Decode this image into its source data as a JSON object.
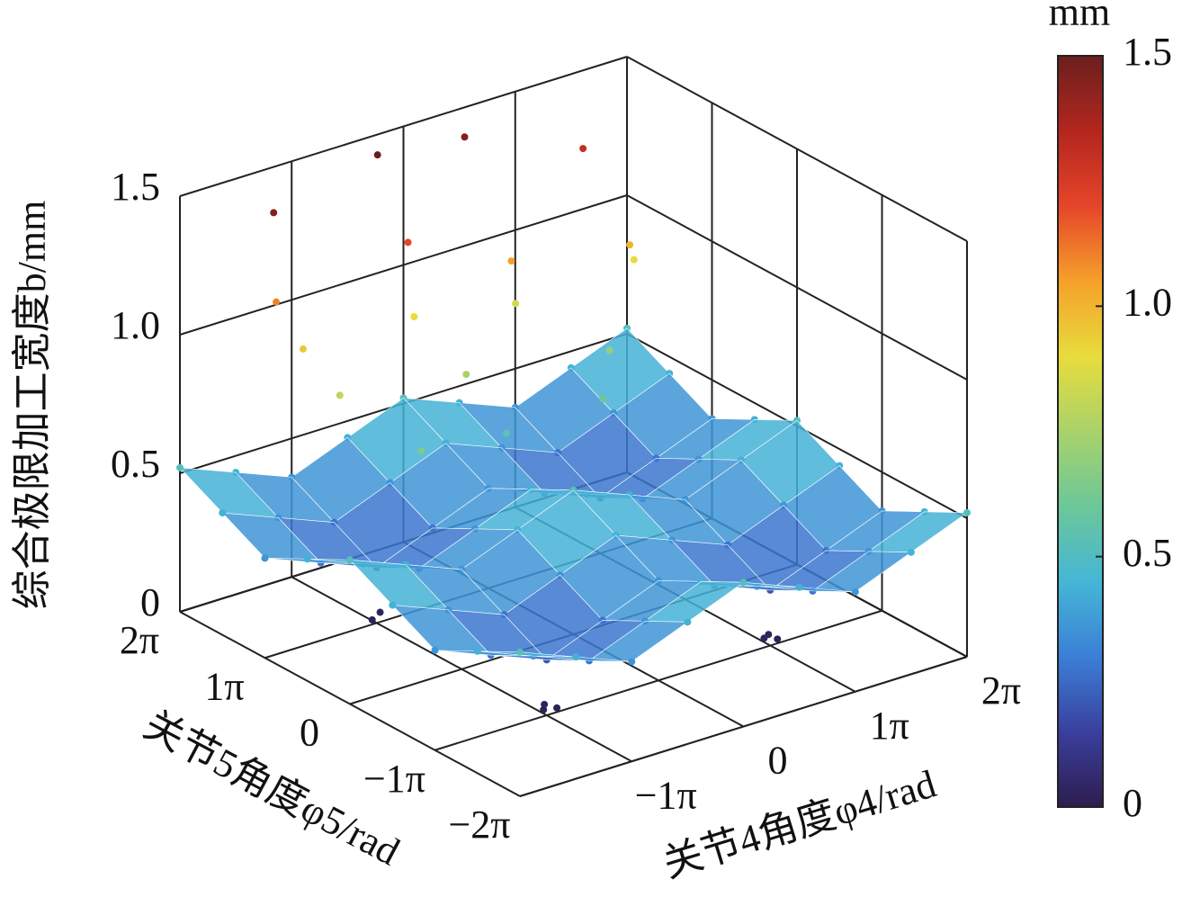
{
  "chart_data": {
    "type": "scatter3d",
    "zlabel": "综合极限加工宽度b/mm",
    "xlabel": "关节4角度φ4/rad",
    "ylabel": "关节5角度φ5/rad",
    "colorbar_title": "mm",
    "xlim": [
      -6.283,
      6.283
    ],
    "ylim": [
      -6.283,
      6.283
    ],
    "zlim": [
      0,
      1.5
    ],
    "xticks": [
      {
        "value": -3.142,
        "label": "−1π"
      },
      0,
      {
        "value": 3.142,
        "label": "1π"
      },
      {
        "value": 6.283,
        "label": "2π"
      }
    ],
    "yticks": [
      {
        "value": -6.283,
        "label": "−2π"
      },
      {
        "value": -3.142,
        "label": "−1π"
      },
      0,
      {
        "value": 3.142,
        "label": "1π"
      },
      {
        "value": 6.283,
        "label": "2π"
      }
    ],
    "zticks": [
      0,
      0.5,
      {
        "value": 1,
        "label": "1.0"
      },
      1.5
    ],
    "clim": [
      0,
      1.5
    ],
    "cticks": [
      0,
      0.5,
      {
        "value": 1,
        "label": "1.0"
      },
      1.5
    ],
    "colormap": [
      "#2c1d4d",
      "#3a3f9e",
      "#3b7fd6",
      "#45b6d6",
      "#6cc79a",
      "#a9d26a",
      "#e8dc3c",
      "#f5a02a",
      "#e6452a",
      "#b3261e",
      "#6b1f1e"
    ],
    "grid": true,
    "surface": {
      "x": [
        -6.283,
        -4.712,
        -3.142,
        -1.571,
        0,
        1.571,
        3.142,
        4.712,
        6.283
      ],
      "y": [
        -6.283,
        -4.712,
        -3.142,
        -1.571,
        0,
        1.571,
        3.142,
        4.712,
        6.283
      ],
      "z": [
        [
          0.52,
          0.44,
          0.36,
          0.44,
          0.52,
          0.44,
          0.36,
          0.44,
          0.52
        ],
        [
          0.44,
          0.36,
          0.28,
          0.36,
          0.44,
          0.36,
          0.28,
          0.36,
          0.44
        ],
        [
          0.36,
          0.28,
          0.2,
          0.28,
          0.36,
          0.28,
          0.2,
          0.28,
          0.36
        ],
        [
          0.44,
          0.36,
          0.28,
          0.36,
          0.44,
          0.36,
          0.28,
          0.36,
          0.44
        ],
        [
          0.52,
          0.44,
          0.36,
          0.44,
          0.52,
          0.44,
          0.36,
          0.44,
          0.52
        ],
        [
          0.44,
          0.36,
          0.28,
          0.36,
          0.44,
          0.36,
          0.28,
          0.36,
          0.44
        ],
        [
          0.36,
          0.28,
          0.2,
          0.28,
          0.36,
          0.28,
          0.2,
          0.28,
          0.36
        ],
        [
          0.44,
          0.36,
          0.28,
          0.36,
          0.44,
          0.36,
          0.28,
          0.36,
          0.44
        ],
        [
          0.52,
          0.44,
          0.36,
          0.44,
          0.52,
          0.44,
          0.36,
          0.44,
          0.52
        ]
      ]
    },
    "points": {
      "x": [
        -4.7,
        -4.4,
        -4.1,
        -3.6,
        -1.4,
        -1.0,
        -0.6,
        -0.2,
        1.2,
        1.6,
        2.1,
        4.3,
        4.7,
        5.2,
        -2.6,
        0.4,
        2.8,
        3.6,
        -3.3,
        -3.0,
        -3.2,
        -3.1,
        -2.9,
        3.0,
        3.3,
        3.2
      ],
      "y": [
        4.9,
        5.2,
        4.6,
        3.9,
        5.4,
        4.8,
        5.1,
        3.7,
        5.6,
        4.4,
        4.9,
        5.3,
        4.1,
        4.6,
        2.2,
        3.0,
        2.6,
        3.4,
        3.1,
        3.2,
        -3.1,
        -3.0,
        -3.2,
        -3.1,
        -3.2,
        -3.0
      ],
      "z": [
        1.45,
        1.1,
        0.95,
        0.8,
        1.5,
        1.2,
        0.9,
        0.75,
        1.45,
        1.05,
        0.85,
        1.3,
        1.0,
        0.9,
        0.65,
        0.55,
        0.6,
        0.7,
        0.02,
        0.03,
        0.02,
        0.03,
        0.02,
        0.03,
        0.02,
        0.03
      ]
    }
  }
}
